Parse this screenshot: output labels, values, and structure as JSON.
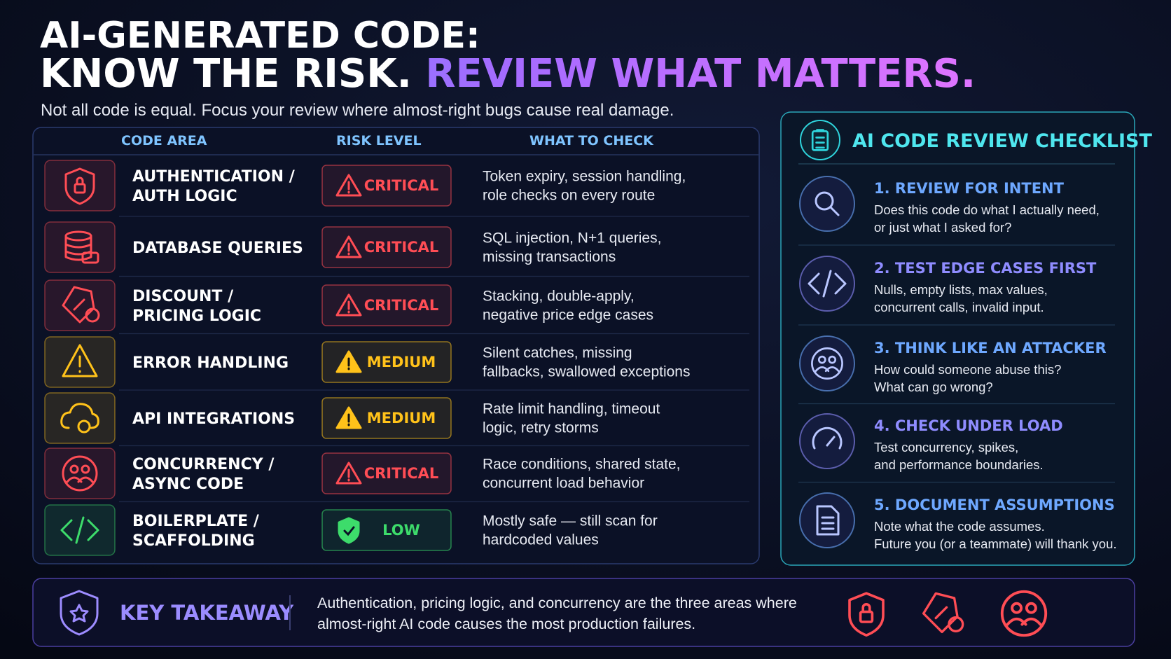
{
  "header": {
    "title_line1": "AI-GENERATED CODE:",
    "title_line2": "KNOW THE RISK.",
    "title_highlight": "REVIEW WHAT MATTERS.",
    "subtitle": "Not all code is equal. Focus your review where almost-right bugs cause real damage."
  },
  "table": {
    "columns": [
      "CODE AREA",
      "RISK LEVEL",
      "WHAT TO CHECK"
    ],
    "rows": [
      {
        "area": [
          "AUTHENTICATION /",
          "AUTH LOGIC"
        ],
        "risk": "CRITICAL",
        "color": "#ff4d55",
        "check": [
          "Token expiry, session handling,",
          "role checks on every route"
        ]
      },
      {
        "area": [
          "DATABASE QUERIES"
        ],
        "risk": "CRITICAL",
        "color": "#ff4d55",
        "check": [
          "SQL injection, N+1 queries,",
          "missing transactions"
        ]
      },
      {
        "area": [
          "DISCOUNT /",
          "PRICING LOGIC"
        ],
        "risk": "CRITICAL",
        "color": "#ff4d55",
        "check": [
          "Stacking, double-apply,",
          "negative price edge cases"
        ]
      },
      {
        "area": [
          "ERROR HANDLING"
        ],
        "risk": "MEDIUM",
        "color": "#ffc21a",
        "check": [
          "Silent catches, missing",
          "fallbacks, swallowed exceptions"
        ]
      },
      {
        "area": [
          "API INTEGRATIONS"
        ],
        "risk": "MEDIUM",
        "color": "#ffc21a",
        "check": [
          "Rate limit handling, timeout",
          "logic, retry storms"
        ]
      },
      {
        "area": [
          "CONCURRENCY /",
          "ASYNC CODE"
        ],
        "risk": "CRITICAL",
        "color": "#ff4d55",
        "check": [
          "Race conditions, shared state,",
          "concurrent load behavior"
        ]
      },
      {
        "area": [
          "BOILERPLATE /",
          "SCAFFOLDING"
        ],
        "risk": "LOW",
        "color": "#3ddc6b",
        "check": [
          "Mostly safe — still scan for",
          "hardcoded values"
        ]
      }
    ]
  },
  "checklist": {
    "title": "AI CODE REVIEW CHECKLIST",
    "items": [
      {
        "title": "1. REVIEW FOR INTENT",
        "text": [
          "Does this code do what I actually need,",
          "or just what I asked for?"
        ]
      },
      {
        "title": "2. TEST EDGE CASES FIRST",
        "text": [
          "Nulls, empty lists, max values,",
          "concurrent calls, invalid input."
        ]
      },
      {
        "title": "3. THINK LIKE AN ATTACKER",
        "text": [
          "How could someone abuse this?",
          "What can go wrong?"
        ]
      },
      {
        "title": "4. CHECK UNDER LOAD",
        "text": [
          "Test concurrency, spikes,",
          "and performance boundaries."
        ]
      },
      {
        "title": "5. DOCUMENT ASSUMPTIONS",
        "text": [
          "Note what the code assumes.",
          "Future you (or a teammate) will thank you."
        ]
      }
    ]
  },
  "takeaway": {
    "label": "KEY TAKEAWAY",
    "text": [
      "Authentication, pricing logic, and concurrency are the three areas where",
      "almost-right AI code causes the most production failures."
    ]
  }
}
